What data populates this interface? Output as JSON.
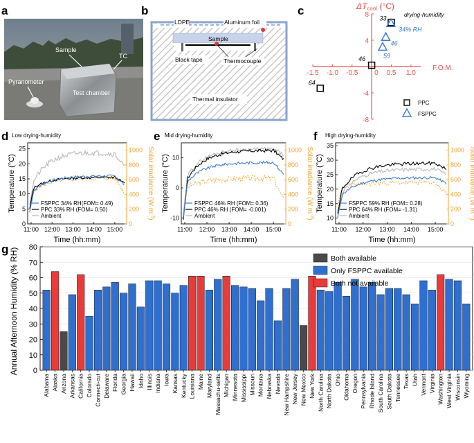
{
  "panels": {
    "a": {
      "letter": "a",
      "labels": {
        "sample": "Sample",
        "tc": "TC",
        "pyranometer": "Pyranometer",
        "chamber": "Test chamber"
      }
    },
    "b": {
      "letter": "b",
      "labels": {
        "ldpe": "LDPE",
        "foil": "Aluminum foil",
        "sample": "Sample",
        "tape": "Black tape",
        "thermocouple": "Thermocouple",
        "insulator": "Thermal insulator"
      }
    },
    "c": {
      "letter": "c",
      "x_axis_label": "F.O.M.",
      "y_axis_label_prefix": "ΔT",
      "y_axis_label_sub": "cool",
      "y_axis_label_unit": " (°C)",
      "title_annotation": "drying-humidity",
      "ppc_labels": [
        "33",
        "46",
        "64"
      ],
      "fsppc_labels": [
        "34% RH",
        "46",
        "59"
      ],
      "legend": [
        "PPC",
        "FSPPC"
      ],
      "x_ticks": [
        "-1.5",
        "-1.0",
        "-0.5",
        "0.5",
        "1.0"
      ],
      "y_ticks": [
        "8",
        "4",
        "-4",
        "-8"
      ],
      "zero": "0"
    },
    "d": {
      "letter": "d",
      "title": "Low drying-humidity",
      "legend": [
        "FSPPC 34% RH(FOM= 0.49)",
        "PPC 33% RH (FOM= 0.50)",
        "Ambient"
      ]
    },
    "e": {
      "letter": "e",
      "title": "Mid drying-humidity",
      "legend": [
        "FSPPC 46% RH (FOM= 0.36)",
        "PPC 46% RH (FOM= -0.001)",
        "Ambient"
      ]
    },
    "f": {
      "letter": "f",
      "title": "High drying-humidity",
      "legend": [
        "FSPPC 59% RH (FOM= 0.28)",
        "PPC 64% RH (FOM= -1.31)",
        "Ambient"
      ]
    },
    "g": {
      "letter": "g",
      "legend": [
        "Both available",
        "Only FSPPC available",
        "Both not available"
      ]
    }
  },
  "time_axes": {
    "xlabel": "Time (hh:mm)",
    "ylabel_left": "Temperature (°C)",
    "ylabel_right": "Solar irradiance (W m",
    "ylabel_right_sup": "-2",
    "ylabel_right_close": ")",
    "xticks": [
      "11:00",
      "12:00",
      "13:00",
      "14:00",
      "15:00"
    ],
    "d_yticks": [
      "0",
      "5",
      "10",
      "15",
      "20",
      "25"
    ],
    "e_yticks": [
      "-10",
      "0",
      "10"
    ],
    "f_yticks": [
      "10",
      "15",
      "20",
      "25",
      "30",
      "35"
    ],
    "right_ticks": [
      "0",
      "200",
      "400",
      "600",
      "800",
      "1000"
    ]
  },
  "chart_data": [
    {
      "type": "scatter",
      "panel": "c",
      "xlabel": "F.O.M.",
      "ylabel": "ΔTcool (°C)",
      "xlim": [
        -1.5,
        1.25
      ],
      "ylim": [
        -8,
        8
      ],
      "series": [
        {
          "name": "PPC",
          "x": [
            0.5,
            0.0,
            -1.31
          ],
          "y": [
            6.7,
            0.2,
            -3.3
          ],
          "labels": [
            "33",
            "46",
            "64"
          ]
        },
        {
          "name": "FSPPC",
          "x": [
            0.49,
            0.36,
            0.28
          ],
          "y": [
            6.6,
            4.5,
            3.0
          ],
          "labels": [
            "34% RH",
            "46",
            "59"
          ]
        }
      ]
    },
    {
      "type": "bar",
      "panel": "g",
      "title": "",
      "xlabel": "",
      "ylabel": "Annual Afternoon Humidity (% RH)",
      "ylim": [
        0,
        80
      ],
      "yticks": [
        "0",
        "10",
        "20",
        "30",
        "40",
        "50",
        "60",
        "70",
        "80"
      ],
      "categories": [
        "Alabama",
        "Alaska",
        "Arizona",
        "Arkansas",
        "California",
        "Colorado",
        "Connecti-cut",
        "Delaware",
        "Florida",
        "Georgia",
        "Hawaii",
        "Idaho",
        "Illinois",
        "Indiana",
        "Iowa",
        "Kansas",
        "Kentucky",
        "Louisiana",
        "Maine",
        "Maryland",
        "Massachu-setts",
        "Michigan",
        "Minnesota",
        "Mississippi",
        "Missouri",
        "Montana",
        "Nebraska",
        "Nevada",
        "New Hampshire",
        "New Jersey",
        "New Mexico",
        "New York",
        "North Carolina",
        "North Dakota",
        "Ohio",
        "Oklahoma",
        "Oregon",
        "Pennsylvania",
        "Rhode Island",
        "South Carolina",
        "South Dakota",
        "Tennessee",
        "Texas",
        "Utah",
        "Vermont",
        "Virginia",
        "Washington",
        "West Virginia",
        "Wisconsin",
        "Wyoming"
      ],
      "values": [
        52,
        64,
        25,
        49,
        62,
        35,
        52,
        54,
        57,
        50,
        56,
        41,
        58,
        58,
        56,
        50,
        55,
        61,
        61,
        52,
        59,
        61,
        55,
        54,
        53,
        45,
        53,
        32,
        53,
        59,
        29,
        61,
        52,
        51,
        57,
        48,
        59,
        54,
        57,
        49,
        53,
        53,
        49,
        43,
        58,
        52,
        62,
        59,
        58,
        43
      ],
      "status": [
        "f",
        "n",
        "b",
        "f",
        "n",
        "f",
        "f",
        "f",
        "f",
        "f",
        "f",
        "f",
        "f",
        "f",
        "f",
        "f",
        "f",
        "n",
        "n",
        "f",
        "f",
        "n",
        "f",
        "f",
        "f",
        "f",
        "f",
        "f",
        "f",
        "f",
        "b",
        "n",
        "f",
        "f",
        "f",
        "f",
        "f",
        "f",
        "f",
        "f",
        "f",
        "f",
        "f",
        "f",
        "f",
        "f",
        "n",
        "f",
        "f",
        "f"
      ],
      "status_legend": {
        "b": "Both available",
        "f": "Only FSPPC available",
        "n": "Both not available"
      },
      "colors": {
        "b": "#4a4a4a",
        "f": "#2f6fd0",
        "n": "#ea3b3b"
      }
    }
  ],
  "colors": {
    "fsppc": "#3a7bd5",
    "ppc": "#000000",
    "ambient": "#b8b8b8",
    "solar": "#f5a32a",
    "red_axis": "#e8504a"
  }
}
